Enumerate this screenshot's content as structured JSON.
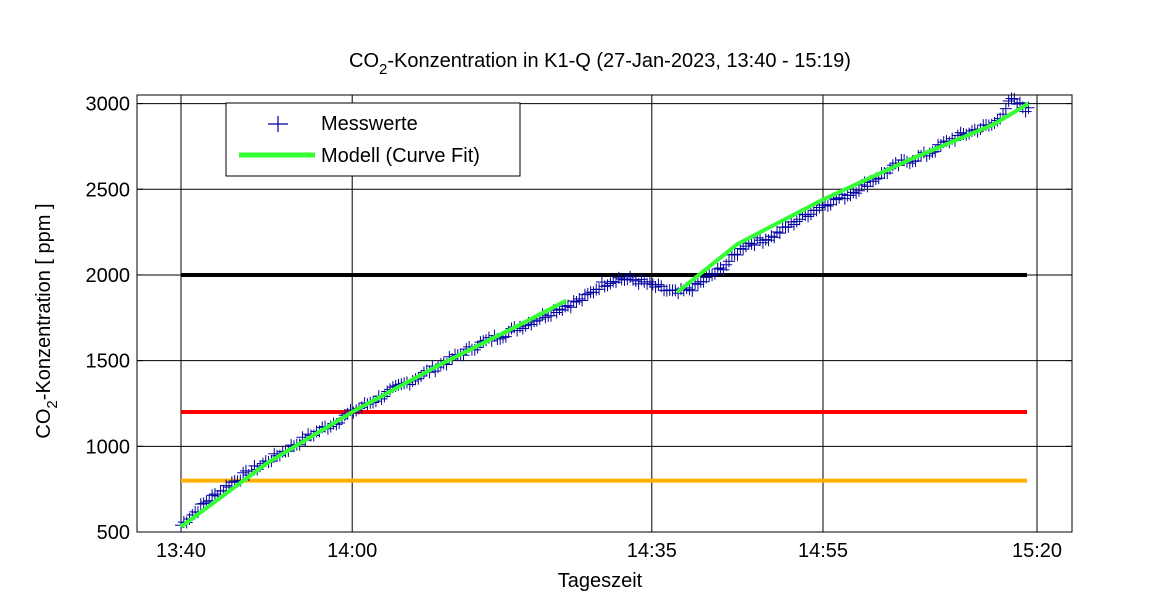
{
  "chart_data": {
    "type": "line",
    "title_main": "CO",
    "title_sub": "2",
    "title_rest": "-Konzentration in K1-Q (27-Jan-2023, 13:40 - 15:19)",
    "xlabel": "Tageszeit",
    "ylabel_main": "CO",
    "ylabel_sub": "2",
    "ylabel_rest": "-Konzentration [ ppm ]",
    "x_unit": "minutes",
    "xlim": [
      "13:40",
      "15:20"
    ],
    "ylim": [
      500,
      3050
    ],
    "x_ticks": [
      "13:40",
      "14:00",
      "14:35",
      "14:55",
      "15:20"
    ],
    "y_ticks": [
      500,
      1000,
      1500,
      2000,
      2500,
      3000
    ],
    "grid": true,
    "legend_position": "top-left",
    "series": [
      {
        "name": "Messwerte",
        "style": "markers",
        "color": "#0000a0",
        "x": [
          "13:40",
          "13:43",
          "13:46",
          "13:49",
          "13:52",
          "13:55",
          "13:58",
          "14:00",
          "14:03",
          "14:06",
          "14:09",
          "14:12",
          "14:15",
          "14:18",
          "14:21",
          "14:24",
          "14:27",
          "14:29",
          "14:31",
          "14:33",
          "14:35",
          "14:36",
          "14:38",
          "14:40",
          "14:43",
          "14:46",
          "14:49",
          "14:52",
          "14:55",
          "14:58",
          "15:01",
          "15:04",
          "15:07",
          "15:10",
          "15:13",
          "15:15",
          "15:17",
          "15:19"
        ],
        "y": [
          540,
          680,
          790,
          880,
          970,
          1060,
          1140,
          1200,
          1280,
          1360,
          1440,
          1520,
          1600,
          1660,
          1730,
          1800,
          1860,
          1940,
          1980,
          1970,
          1940,
          1920,
          1890,
          1930,
          2030,
          2180,
          2220,
          2320,
          2410,
          2470,
          2560,
          2650,
          2700,
          2790,
          2850,
          2880,
          3020,
          2960
        ]
      },
      {
        "name": "Modell (Curve Fit)",
        "style": "line",
        "color": "#33ff33",
        "segments": [
          {
            "x": [
              "13:40",
              "13:50",
              "14:00",
              "14:10",
              "14:20",
              "14:25"
            ],
            "y": [
              530,
              900,
              1200,
              1470,
              1720,
              1850
            ]
          },
          {
            "x": [
              "14:38",
              "14:45",
              "14:55",
              "15:05",
              "15:15",
              "15:19"
            ],
            "y": [
              1900,
              2180,
              2440,
              2670,
              2880,
              3000
            ]
          }
        ]
      }
    ],
    "reference_lines": [
      {
        "y": 2000,
        "color": "#000000"
      },
      {
        "y": 1200,
        "color": "#ff0000"
      },
      {
        "y": 800,
        "color": "#ffb000"
      }
    ]
  }
}
